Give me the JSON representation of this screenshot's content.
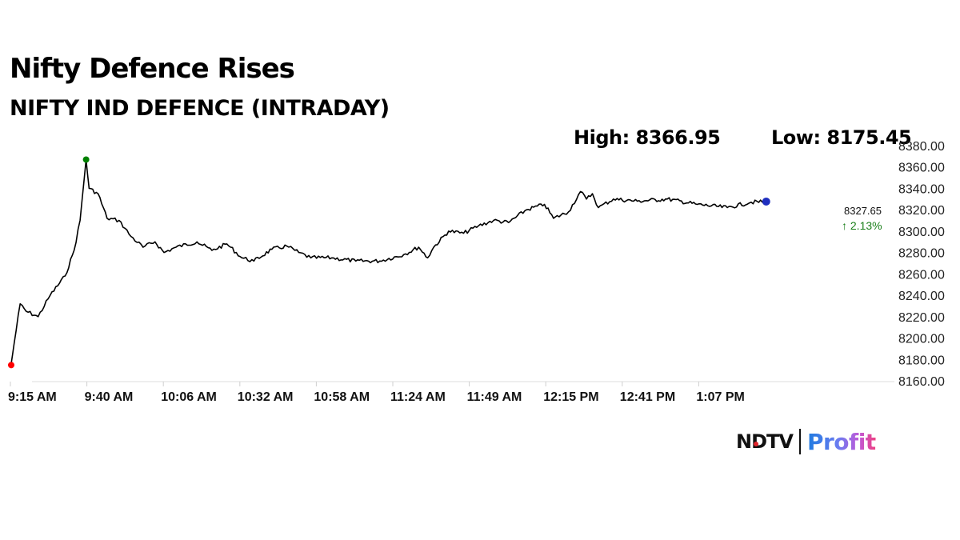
{
  "header": {
    "title": "Nifty Defence Rises",
    "subtitle": "NIFTY IND DEFENCE (INTRADAY)"
  },
  "stats": {
    "high_label": "High: 8366.95",
    "low_label": "Low: 8175.45",
    "last_value": "8327.65",
    "change": "↑ 2.13%"
  },
  "brand": {
    "ndtv": "NDTV",
    "profit": "Profit"
  },
  "colors": {
    "line": "#000000",
    "low_marker": "#ff0000",
    "high_marker": "#008000",
    "last_marker": "#1f2fbf",
    "change_positive": "#1a7f1a"
  },
  "chart_data": {
    "type": "line",
    "title": "Nifty Defence Rises",
    "subtitle": "NIFTY IND DEFENCE (INTRADAY)",
    "xlabel": "",
    "ylabel": "",
    "ylim": [
      8160,
      8380
    ],
    "yticks": [
      "8380.00",
      "8360.00",
      "8340.00",
      "8320.00",
      "8300.00",
      "8280.00",
      "8260.00",
      "8240.00",
      "8220.00",
      "8200.00",
      "8180.00",
      "8160.00"
    ],
    "xticks": [
      "9:15 AM",
      "9:40 AM",
      "10:06 AM",
      "10:32 AM",
      "10:58 AM",
      "11:24 AM",
      "11:49 AM",
      "12:15 PM",
      "12:41 PM",
      "1:07 PM"
    ],
    "grid": false,
    "legend": "none",
    "annotations": {
      "high": {
        "label": "High: 8366.95",
        "value": 8366.95,
        "time": "9:40 AM"
      },
      "low": {
        "label": "Low: 8175.45",
        "value": 8175.45,
        "time": "9:15 AM"
      },
      "last": {
        "value": 8327.65,
        "change_pct": 2.13
      }
    },
    "series": [
      {
        "name": "NIFTY IND DEFENCE",
        "x": [
          "9:15",
          "9:16",
          "9:18",
          "9:20",
          "9:24",
          "9:28",
          "9:33",
          "9:36",
          "9:38",
          "9:40",
          "9:41",
          "9:44",
          "9:47",
          "9:51",
          "9:55",
          "9:59",
          "10:03",
          "10:06",
          "10:10",
          "10:17",
          "10:22",
          "10:27",
          "10:32",
          "10:36",
          "10:42",
          "10:47",
          "10:51",
          "10:55",
          "11:02",
          "11:10",
          "11:18",
          "11:26",
          "11:31",
          "11:34",
          "11:36",
          "11:41",
          "11:46",
          "11:51",
          "11:56",
          "12:01",
          "12:07",
          "12:13",
          "12:16",
          "12:21",
          "12:25",
          "12:27",
          "12:29",
          "12:31",
          "12:36",
          "12:44",
          "12:54",
          "13:04",
          "13:14",
          "13:22",
          "13:27"
        ],
        "values": [
          8176,
          8195,
          8232,
          8225,
          8220,
          8240,
          8258,
          8282,
          8310,
          8366.95,
          8340,
          8335,
          8312,
          8310,
          8295,
          8285,
          8290,
          8280,
          8285,
          8290,
          8282,
          8288,
          8275,
          8272,
          8283,
          8286,
          8280,
          8275,
          8275,
          8272,
          8272,
          8278,
          8285,
          8275,
          8285,
          8300,
          8298,
          8305,
          8310,
          8308,
          8320,
          8325,
          8312,
          8318,
          8337,
          8330,
          8335,
          8322,
          8330,
          8328,
          8330,
          8325,
          8322,
          8327,
          8327.65
        ]
      }
    ]
  }
}
